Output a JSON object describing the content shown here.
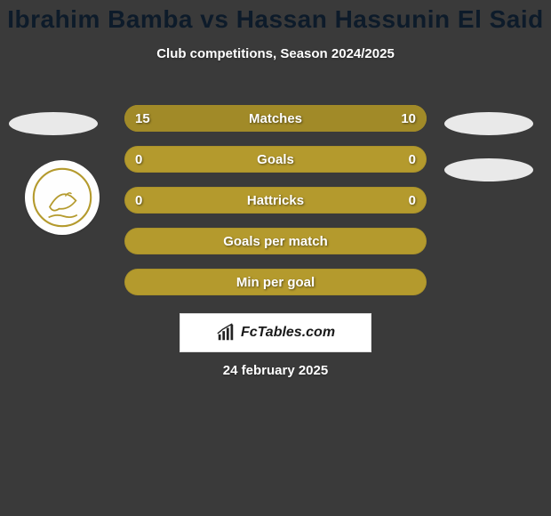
{
  "colors": {
    "page_bg": "#3a3a3a",
    "title_color": "#0d1b2a",
    "subtitle_color": "#ffffff",
    "bar_track": "#b49a2d",
    "bar_fill_left": "#a18a28",
    "bar_fill_right": "#a18a28",
    "bar_label_color": "#ffffff",
    "side_badge": "#e9e9e9",
    "logo_stroke": "#b49a2d",
    "footer_text": "#1a1a1a",
    "date_color": "#ffffff"
  },
  "title": {
    "text": "Ibrahim Bamba vs Hassan Hassunin El Said",
    "fontsize": 28
  },
  "subtitle": {
    "text": "Club competitions, Season 2024/2025",
    "fontsize": 15
  },
  "bars": {
    "label_fontsize": 15,
    "value_fontsize": 15,
    "rows": [
      {
        "label": "Matches",
        "left": "15",
        "right": "10",
        "left_pct": 60,
        "right_pct": 40
      },
      {
        "label": "Goals",
        "left": "0",
        "right": "0",
        "left_pct": 0,
        "right_pct": 0
      },
      {
        "label": "Hattricks",
        "left": "0",
        "right": "0",
        "left_pct": 0,
        "right_pct": 0
      },
      {
        "label": "Goals per match",
        "left": "",
        "right": "",
        "left_pct": 0,
        "right_pct": 0
      },
      {
        "label": "Min per goal",
        "left": "",
        "right": "",
        "left_pct": 0,
        "right_pct": 0
      }
    ]
  },
  "footer": {
    "brand": "FcTables.com",
    "brand_fontsize": 16
  },
  "date": {
    "text": "24 february 2025",
    "fontsize": 15
  }
}
